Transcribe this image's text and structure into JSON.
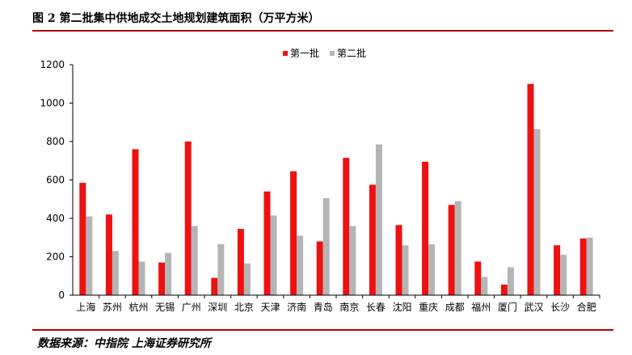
{
  "header": {
    "title": "图 2 第二批集中供地成交土地规划建筑面积（万平方米）"
  },
  "footer": {
    "source": "数据来源：中指院 上海证券研究所"
  },
  "colors": {
    "series_1": "#ee1111",
    "series_2": "#b5b5b5",
    "rule": "#b00000"
  },
  "chart_data": {
    "type": "bar",
    "categories": [
      "上海",
      "苏州",
      "杭州",
      "无锡",
      "广州",
      "深圳",
      "北京",
      "天津",
      "济南",
      "青岛",
      "南京",
      "长春",
      "沈阳",
      "重庆",
      "成都",
      "福州",
      "厦门",
      "武汉",
      "长沙",
      "合肥"
    ],
    "series": [
      {
        "name": "第一批",
        "values": [
          585,
          420,
          760,
          170,
          800,
          90,
          345,
          540,
          645,
          280,
          715,
          575,
          365,
          695,
          470,
          175,
          55,
          1100,
          260,
          295
        ]
      },
      {
        "name": "第二批",
        "values": [
          410,
          230,
          175,
          220,
          360,
          265,
          165,
          415,
          310,
          505,
          360,
          785,
          260,
          265,
          490,
          95,
          145,
          865,
          210,
          300
        ]
      }
    ],
    "yticks": [
      "0",
      "200",
      "400",
      "600",
      "800",
      "1000",
      "1200"
    ],
    "ylim": [
      0,
      1200
    ],
    "legend_position": "top-center",
    "grid": false
  }
}
